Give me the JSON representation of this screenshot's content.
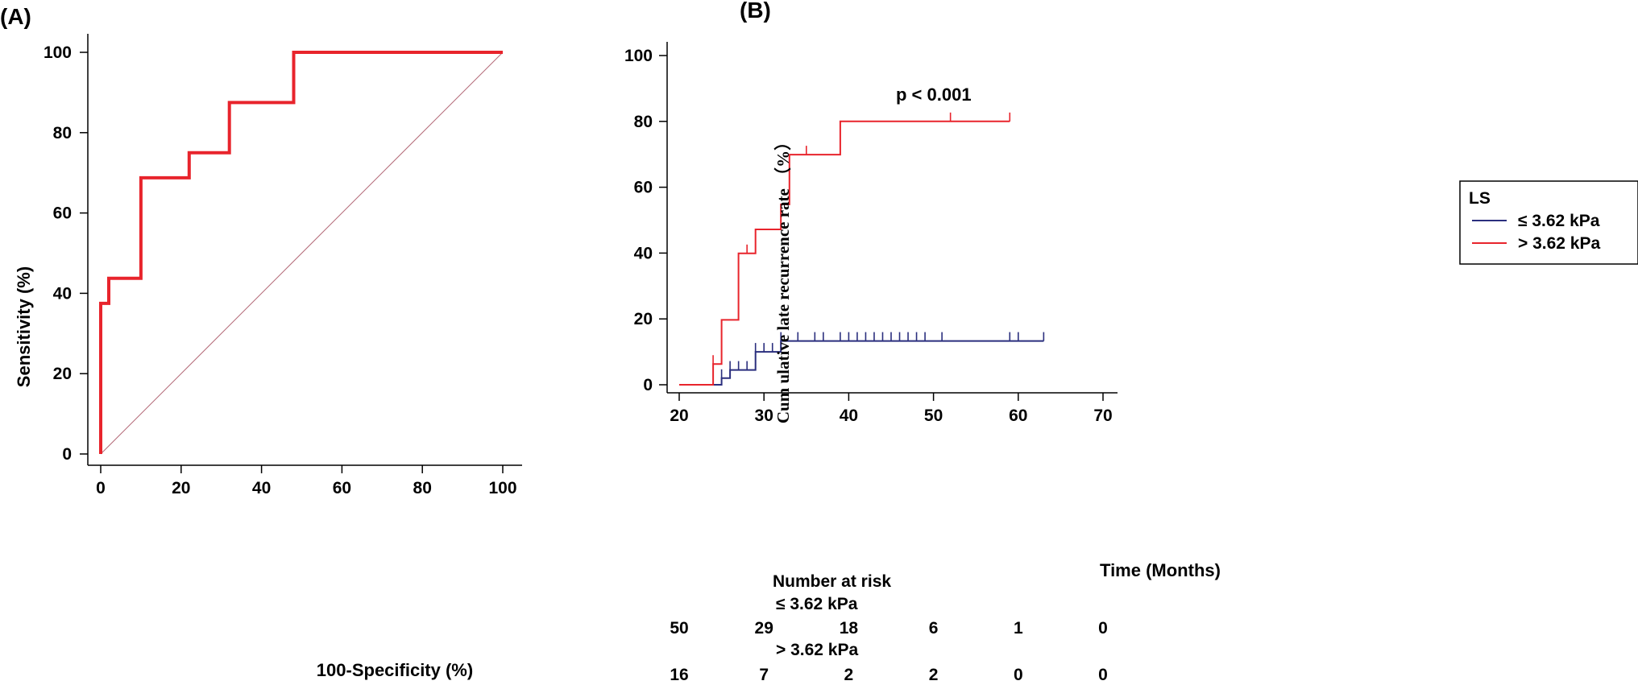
{
  "colors": {
    "red": "#e8242c",
    "blue": "#2b2f7e",
    "diagonal": "#b36a78",
    "axis": "#000000"
  },
  "chart_data": [
    {
      "panel": "(A)",
      "type": "line",
      "title": "",
      "xlabel": "100-Specificity (%)",
      "ylabel": "Sensitivity (%)",
      "xlim": [
        0,
        100
      ],
      "ylim": [
        0,
        100
      ],
      "xticks": [
        0,
        20,
        40,
        60,
        80,
        100
      ],
      "yticks": [
        0,
        20,
        40,
        60,
        80,
        100
      ],
      "series": [
        {
          "name": "ROC curve",
          "step": true,
          "x": [
            0,
            0,
            2,
            2,
            10,
            10,
            22,
            22,
            32,
            32,
            48,
            48,
            100
          ],
          "y": [
            0,
            37.5,
            37.5,
            43.75,
            43.75,
            68.75,
            68.75,
            75,
            75,
            87.5,
            87.5,
            100,
            100
          ]
        },
        {
          "name": "Reference diagonal",
          "x": [
            0,
            100
          ],
          "y": [
            0,
            100
          ]
        }
      ]
    },
    {
      "panel": "(B)",
      "type": "line",
      "title": "",
      "annotation": "p < 0.001",
      "xlabel": "Time (Months)",
      "ylabel": "Cum ulative late recurrence rate （%）",
      "xlim": [
        20,
        70
      ],
      "ylim": [
        0,
        100
      ],
      "xticks": [
        20,
        30,
        40,
        50,
        60,
        70
      ],
      "yticks": [
        0,
        20,
        40,
        60,
        80,
        100
      ],
      "legend": {
        "title": "LS",
        "position": "right"
      },
      "series": [
        {
          "name": "≤ 3.62 kPa",
          "color_key": "blue",
          "x": [
            20,
            25,
            25,
            26,
            26,
            29,
            29,
            32,
            32,
            63
          ],
          "y": [
            0,
            0,
            2,
            2,
            4.5,
            4.5,
            10,
            10,
            13.3,
            13.3
          ],
          "censored": [
            {
              "x": 25,
              "y": 2
            },
            {
              "x": 26,
              "y": 4.5
            },
            {
              "x": 27,
              "y": 4.5
            },
            {
              "x": 28,
              "y": 4.5
            },
            {
              "x": 29,
              "y": 10
            },
            {
              "x": 30,
              "y": 10
            },
            {
              "x": 31,
              "y": 10
            },
            {
              "x": 32,
              "y": 13.3
            },
            {
              "x": 34,
              "y": 13.3
            },
            {
              "x": 36,
              "y": 13.3
            },
            {
              "x": 37,
              "y": 13.3
            },
            {
              "x": 39,
              "y": 13.3
            },
            {
              "x": 40,
              "y": 13.3
            },
            {
              "x": 41,
              "y": 13.3
            },
            {
              "x": 42,
              "y": 13.3
            },
            {
              "x": 43,
              "y": 13.3
            },
            {
              "x": 44,
              "y": 13.3
            },
            {
              "x": 45,
              "y": 13.3
            },
            {
              "x": 46,
              "y": 13.3
            },
            {
              "x": 47,
              "y": 13.3
            },
            {
              "x": 48,
              "y": 13.3
            },
            {
              "x": 49,
              "y": 13.3
            },
            {
              "x": 51,
              "y": 13.3
            },
            {
              "x": 59,
              "y": 13.3
            },
            {
              "x": 60,
              "y": 13.3
            },
            {
              "x": 63,
              "y": 13.3
            }
          ]
        },
        {
          "name": "> 3.62 kPa",
          "color_key": "red",
          "x": [
            20,
            24,
            24,
            25,
            25,
            27,
            27,
            29,
            29,
            32,
            32,
            33,
            33,
            39,
            39,
            59
          ],
          "y": [
            0,
            0,
            6.3,
            6.3,
            19.7,
            19.7,
            39.9,
            39.9,
            47.2,
            47.2,
            54.8,
            54.8,
            69.9,
            69.9,
            80,
            80
          ],
          "censored": [
            {
              "x": 24,
              "y": 6.3
            },
            {
              "x": 28,
              "y": 39.9
            },
            {
              "x": 35,
              "y": 69.9
            },
            {
              "x": 52,
              "y": 80
            },
            {
              "x": 59,
              "y": 80
            }
          ]
        }
      ],
      "risk_table": {
        "title": "Number at risk",
        "times": [
          20,
          30,
          40,
          50,
          60,
          70
        ],
        "rows": [
          {
            "label": "≤ 3.62 kPa",
            "values": [
              "50",
              "29",
              "18",
              "6",
              "1",
              "0"
            ]
          },
          {
            "label": "> 3.62 kPa",
            "values": [
              "16",
              "7",
              "2",
              "2",
              "0",
              "0"
            ]
          }
        ]
      }
    }
  ]
}
